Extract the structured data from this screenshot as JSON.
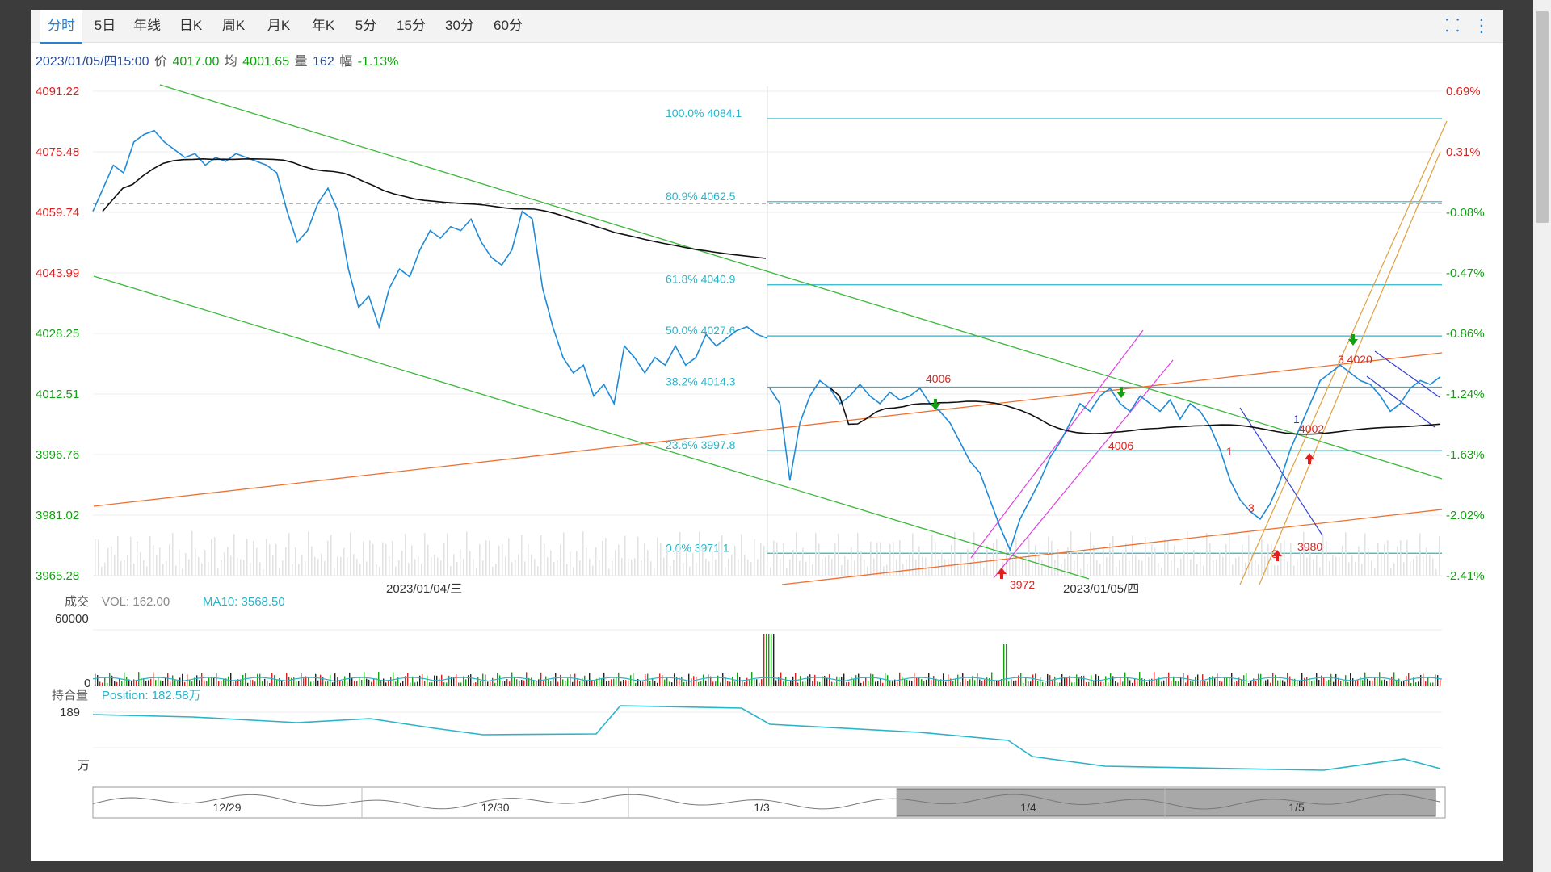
{
  "tabs": [
    {
      "label": "分时",
      "active": true
    },
    {
      "label": "5日",
      "active": false
    },
    {
      "label": "年线",
      "active": false
    },
    {
      "label": "日K",
      "active": false
    },
    {
      "label": "周K",
      "active": false
    },
    {
      "label": "月K",
      "active": false
    },
    {
      "label": "年K",
      "active": false
    },
    {
      "label": "5分",
      "active": false
    },
    {
      "label": "15分",
      "active": false
    },
    {
      "label": "30分",
      "active": false
    },
    {
      "label": "60分",
      "active": false
    }
  ],
  "toolbar": {
    "fullscreen_icon": "compress-icon",
    "menu_icon": "more-vertical-icon"
  },
  "info": {
    "datetime": "2023/01/05/四15:00",
    "price_label": "价",
    "price": "4017.00",
    "avg_label": "均",
    "avg": "4001.65",
    "vol_label": "量",
    "vol": "162",
    "amp_label": "幅",
    "amp": "-1.13%"
  },
  "colors": {
    "price_line": "#1f8ad6",
    "avg_line": "#111111",
    "up": "#e0201e",
    "down": "#12a012",
    "fib": "#2ab4c8",
    "channel_green": "#3ab83a",
    "channel_orange": "#f07030",
    "channel_magenta": "#e040e0",
    "channel_gold": "#e0a040",
    "channel_blue": "#3344cc"
  },
  "chart_data": [
    {
      "type": "line",
      "y_ticks_left": [
        "4091.22",
        "4075.48",
        "4059.74",
        "4043.99",
        "4028.25",
        "4012.51",
        "3996.76",
        "3981.02",
        "3965.28"
      ],
      "y_ticks_right": [
        "0.69%",
        "0.31%",
        "-0.08%",
        "-0.47%",
        "-0.86%",
        "-1.24%",
        "-1.63%",
        "-2.02%",
        "-2.41%"
      ],
      "ylim": [
        3965.28,
        4091.22
      ],
      "prev_close": 4062.0,
      "x_labels": [
        "2023/01/04/三",
        "2023/01/05/四"
      ],
      "fib_levels": [
        {
          "label": "100.0% 4084.1",
          "value": 4084.1
        },
        {
          "label": "80.9% 4062.5",
          "value": 4062.5
        },
        {
          "label": "61.8% 4040.9",
          "value": 4040.9
        },
        {
          "label": "50.0% 4027.6",
          "value": 4027.6
        },
        {
          "label": "38.2% 4014.3",
          "value": 4014.3
        },
        {
          "label": "23.6% 3997.8",
          "value": 3997.8
        },
        {
          "label": "0.0% 3971.1",
          "value": 3971.1
        }
      ],
      "annotations": [
        "4006",
        "4006",
        "3972",
        "4002",
        "3980",
        "3 4020",
        "1",
        "1",
        "3",
        "3"
      ],
      "series": [
        {
          "values": [
            4060,
            4066,
            4072,
            4070,
            4078,
            4080,
            4081,
            4078,
            4076,
            4074,
            4075,
            4072,
            4074,
            4073,
            4075,
            4074,
            4073,
            4072,
            4070,
            4060,
            4052,
            4055,
            4062,
            4066,
            4060,
            4045,
            4035,
            4038,
            4030,
            4040,
            4045,
            4043,
            4050,
            4055,
            4053,
            4056,
            4055,
            4058,
            4052,
            4048,
            4046,
            4050,
            4060,
            4058,
            4040,
            4030,
            4022,
            4018,
            4020,
            4012,
            4015,
            4010,
            4025,
            4022,
            4018,
            4022,
            4020,
            4025,
            4020,
            4022,
            4028,
            4025,
            4027,
            4029,
            4030,
            4028,
            4027
          ],
          "role": "day1-price"
        },
        {
          "values": [
            4014,
            4010,
            3990,
            4005,
            4012,
            4016,
            4014,
            4010,
            4012,
            4015,
            4012,
            4010,
            4013,
            4011,
            4012,
            4014,
            4010,
            4008,
            4005,
            4000,
            3995,
            3992,
            3985,
            3978,
            3972,
            3980,
            3985,
            3990,
            3996,
            4000,
            4005,
            4010,
            4008,
            4012,
            4014,
            4010,
            4008,
            4012,
            4010,
            4008,
            4011,
            4006,
            4010,
            4008,
            4004,
            3998,
            3990,
            3985,
            3982,
            3980,
            3984,
            3990,
            3998,
            4004,
            4010,
            4016,
            4018,
            4020,
            4018,
            4016,
            4015,
            4012,
            4008,
            4010,
            4014,
            4016,
            4015,
            4017
          ],
          "role": "day2-price"
        }
      ]
    },
    {
      "type": "bar",
      "title": "成交",
      "vol_label": "VOL: 162.00",
      "ma_label": "MA10: 3568.50",
      "y_ticks": [
        "60000",
        "0"
      ]
    },
    {
      "type": "line",
      "title": "持合量",
      "position_label": "Position: 182.58万",
      "y_ticks": [
        "189",
        "万"
      ]
    },
    {
      "type": "area",
      "x_labels": [
        "12/29",
        "12/30",
        "1/3",
        "1/4",
        "1/5"
      ]
    }
  ]
}
